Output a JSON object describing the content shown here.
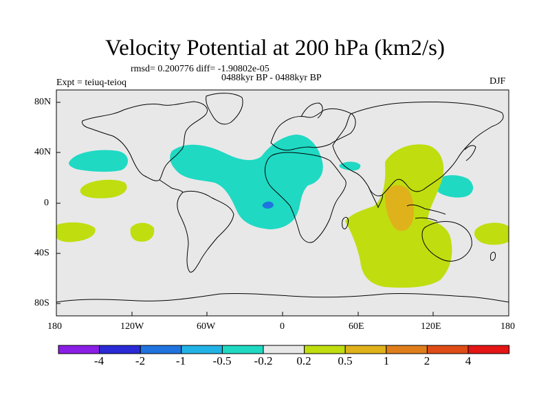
{
  "title": "Velocity Potential at 200 hPa (km2/s)",
  "stats": "rmsd= 0.200776 diff= -1.90802e-05",
  "experiment": "Expt = teiuq-teioq",
  "period": "0488kyr BP - 0488kyr BP",
  "season": "DJF",
  "axes": {
    "lat_ticks": [
      "80N",
      "40N",
      "0",
      "40S",
      "80S"
    ],
    "lon_ticks": [
      "180",
      "120W",
      "60W",
      "0",
      "60E",
      "120E",
      "180"
    ]
  },
  "colors": {
    "background_land_ocean": "#e8e8e8",
    "bins": [
      "#8b1ee6",
      "#2a2ad6",
      "#1f74df",
      "#22b3e6",
      "#1fd9c3",
      "#e8e8e8",
      "#c0dd0f",
      "#dfb21b",
      "#df7e1b",
      "#df4c16",
      "#e41515"
    ]
  },
  "colorbar": {
    "labels": [
      "-4",
      "-2",
      "-1",
      "-0.5",
      "-0.2",
      "0.2",
      "0.5",
      "1",
      "2",
      "4"
    ]
  },
  "regions": [
    {
      "name": "atlantic-africa-negative",
      "level": "-0.5 to -0.2"
    },
    {
      "name": "indian-ocean-positive",
      "level": "0.2 to 0.5"
    },
    {
      "name": "maritime-continent-positive",
      "level": "0.5 to 1"
    }
  ]
}
